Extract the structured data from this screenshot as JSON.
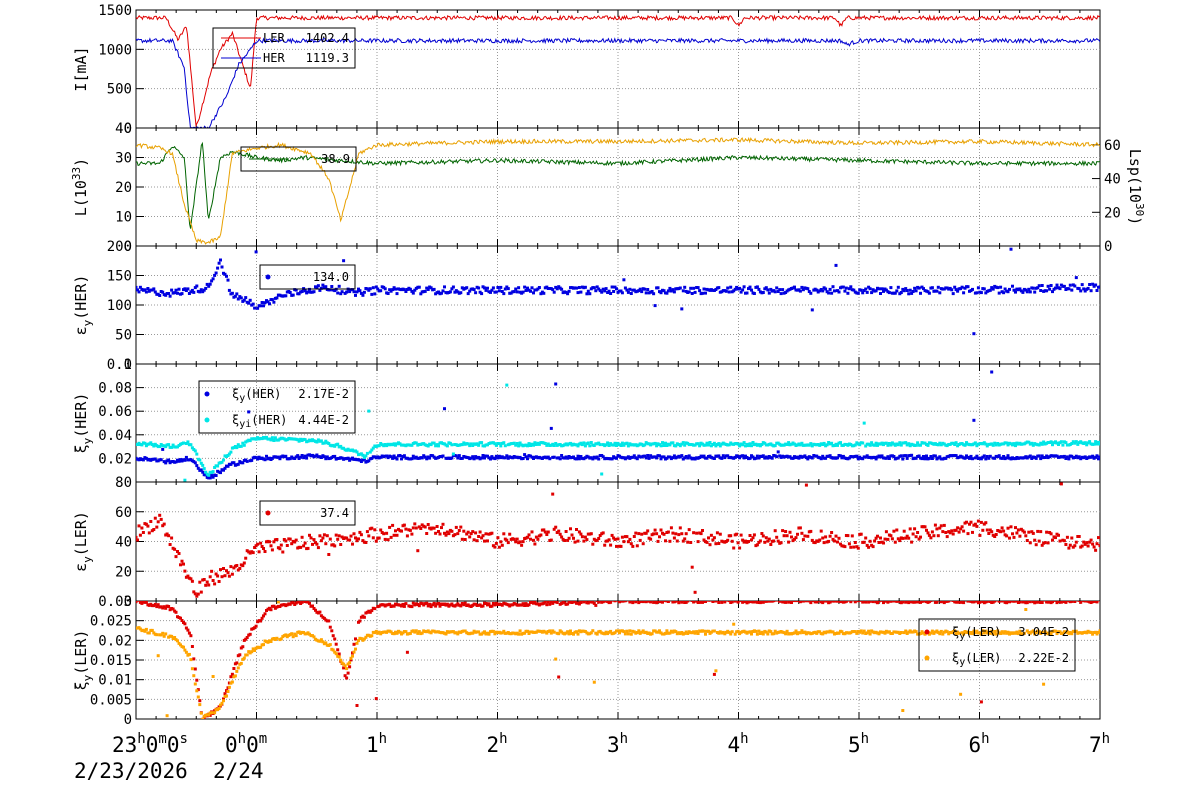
{
  "chart_data": [
    {
      "type": "line",
      "ylabel": "I[mA]",
      "ylim": [
        0,
        1500
      ],
      "yticks": [
        "0",
        "500",
        "1000",
        "1500"
      ],
      "grid": true,
      "series": [
        {
          "name": "LER",
          "color": "#e00000",
          "legend_value": "1402.4",
          "x": [
            0,
            0.25,
            0.35,
            0.42,
            0.5,
            0.62,
            0.7,
            0.8,
            0.95,
            1.0,
            2.0,
            4.0,
            4.95,
            5.0,
            5.05,
            5.8,
            5.85,
            5.9,
            8.0
          ],
          "y": [
            1400,
            1400,
            1120,
            1300,
            0,
            700,
            1000,
            1200,
            500,
            1400,
            1400,
            1400,
            1400,
            1300,
            1400,
            1400,
            1300,
            1400,
            1400
          ]
        },
        {
          "name": "HER",
          "color": "#0000d0",
          "legend_value": "1119.3",
          "x": [
            0,
            0.3,
            0.4,
            0.45,
            0.6,
            0.75,
            0.85,
            0.95,
            1.0,
            2.0,
            5.0,
            5.85,
            5.9,
            6.0,
            8.0
          ],
          "y": [
            1110,
            1110,
            770,
            0,
            0,
            400,
            800,
            1000,
            1110,
            1110,
            1110,
            1110,
            1060,
            1110,
            1110
          ]
        }
      ]
    },
    {
      "type": "line",
      "ylabel": "L(10",
      "ylabel_sup": "33",
      "ylabel_tail": ")",
      "ylim": [
        0,
        40
      ],
      "yticks": [
        "0",
        "10",
        "20",
        "30",
        "40"
      ],
      "y2label": "Lsp(10",
      "y2label_sup": "30",
      "y2label_tail": ")",
      "y2lim": [
        0,
        70
      ],
      "y2ticks": [
        "0",
        "20",
        "40",
        "60"
      ],
      "grid": true,
      "series": [
        {
          "name": "",
          "color": "#006400",
          "legend_value": "38.9",
          "x": [
            0,
            0.2,
            0.3,
            0.4,
            0.45,
            0.55,
            0.6,
            0.7,
            0.8,
            1.0,
            1.2,
            1.4,
            1.7,
            2.0,
            3.0,
            4.0,
            5.0,
            6.0,
            7.0,
            8.0
          ],
          "y": [
            28,
            28,
            34,
            30,
            5,
            36,
            8,
            30,
            32,
            30,
            29,
            30,
            29,
            28,
            29,
            28,
            30,
            29,
            28,
            28
          ]
        },
        {
          "name": "",
          "color": "#e8a000",
          "y_axis": "right",
          "x": [
            0,
            0.2,
            0.3,
            0.4,
            0.5,
            0.6,
            0.7,
            0.8,
            1.0,
            1.2,
            1.45,
            1.6,
            1.7,
            1.85,
            2.0,
            3.0,
            4.0,
            5.0,
            6.0,
            7.0,
            8.0
          ],
          "y": [
            60,
            58,
            55,
            25,
            3,
            2,
            5,
            55,
            58,
            60,
            55,
            40,
            15,
            55,
            60,
            62,
            62,
            63,
            61,
            62,
            60
          ]
        }
      ]
    },
    {
      "type": "scatter",
      "ylabel": "ε",
      "ylabel_sub": "y",
      "ylabel_tail": "(HER)",
      "ylim": [
        0,
        200
      ],
      "yticks": [
        "0",
        "50",
        "100",
        "150",
        "200"
      ],
      "grid": true,
      "series": [
        {
          "name": "",
          "color": "#0000e0",
          "legend_value": "134.0",
          "x": [
            0,
            0.3,
            0.6,
            0.7,
            0.8,
            0.9,
            1.0,
            1.2,
            1.4,
            1.6,
            1.8,
            2.0,
            3.0,
            4.0,
            5.0,
            6.0,
            7.0,
            8.0
          ],
          "y": [
            125,
            120,
            130,
            175,
            115,
            110,
            95,
            115,
            125,
            130,
            120,
            125,
            125,
            125,
            125,
            125,
            125,
            130
          ]
        }
      ]
    },
    {
      "type": "scatter",
      "ylabel": "ξ",
      "ylabel_sub": "y",
      "ylabel_tail": "(HER)",
      "ylim": [
        0,
        0.1
      ],
      "yticks": [
        "0.02",
        "0.04",
        "0.06",
        "0.08",
        "0.1"
      ],
      "grid": true,
      "series": [
        {
          "name": "ξy(HER)",
          "legend_main": "ξ",
          "legend_sub": "y",
          "legend_tail": "(HER)",
          "color": "#0000e0",
          "legend_value": "2.17E-2",
          "x": [
            0,
            0.3,
            0.45,
            0.6,
            0.8,
            1.0,
            1.5,
            1.7,
            1.9,
            2.0,
            3.0,
            4.0,
            5.0,
            6.0,
            7.0,
            8.0
          ],
          "y": [
            0.02,
            0.017,
            0.02,
            0.003,
            0.015,
            0.02,
            0.022,
            0.02,
            0.018,
            0.021,
            0.021,
            0.021,
            0.021,
            0.021,
            0.021,
            0.021
          ]
        },
        {
          "name": "ξyi(HER)",
          "legend_main": "ξ",
          "legend_sub": "yi",
          "legend_tail": "(HER)",
          "color": "#00e6e6",
          "legend_value": "4.44E-2",
          "x": [
            0,
            0.3,
            0.45,
            0.6,
            0.8,
            1.0,
            1.5,
            1.7,
            1.9,
            2.0,
            3.0,
            4.0,
            5.0,
            6.0,
            7.0,
            8.0
          ],
          "y": [
            0.033,
            0.03,
            0.033,
            0.005,
            0.028,
            0.037,
            0.035,
            0.03,
            0.022,
            0.032,
            0.032,
            0.032,
            0.032,
            0.032,
            0.032,
            0.033
          ]
        }
      ]
    },
    {
      "type": "scatter",
      "ylabel": "ε",
      "ylabel_sub": "y",
      "ylabel_tail": "(LER)",
      "ylim": [
        0,
        80
      ],
      "yticks": [
        "0",
        "20",
        "40",
        "60",
        "80"
      ],
      "grid": true,
      "series": [
        {
          "name": "",
          "color": "#e00000",
          "legend_value": "37.4",
          "x": [
            0,
            0.2,
            0.35,
            0.5,
            0.6,
            0.8,
            1.0,
            1.5,
            2.0,
            2.5,
            3.0,
            3.5,
            4.0,
            4.5,
            5.0,
            5.5,
            6.0,
            6.5,
            7.0,
            7.5,
            8.0
          ],
          "y": [
            45,
            55,
            30,
            5,
            15,
            20,
            35,
            40,
            45,
            50,
            40,
            45,
            40,
            45,
            40,
            45,
            40,
            45,
            50,
            42,
            38
          ]
        }
      ]
    },
    {
      "type": "scatter",
      "ylabel": "ξ",
      "ylabel_sub": "y",
      "ylabel_tail": "(LER)",
      "ylim": [
        0,
        0.03
      ],
      "yticks": [
        "0",
        "0.005",
        "0.01",
        "0.015",
        "0.02",
        "0.025",
        "0.03"
      ],
      "grid": true,
      "series": [
        {
          "name": "ξy(LER)",
          "legend_main": "ξ",
          "legend_sub": "y",
          "legend_tail": "(LER)",
          "color": "#e00000",
          "legend_value": "3.04E-2",
          "x": [
            0,
            0.3,
            0.45,
            0.55,
            0.7,
            0.9,
            1.1,
            1.4,
            1.6,
            1.75,
            1.85,
            2.0,
            3.0,
            4.0,
            5.0,
            6.0,
            7.0,
            8.0
          ],
          "y": [
            0.03,
            0.028,
            0.022,
            0.0,
            0.003,
            0.02,
            0.028,
            0.03,
            0.025,
            0.01,
            0.025,
            0.029,
            0.029,
            0.03,
            0.03,
            0.03,
            0.03,
            0.03
          ]
        },
        {
          "name": "ξy(LER)",
          "legend_main": "ξ",
          "legend_sub": "y",
          "legend_tail": "(LER)",
          "color": "#ffa500",
          "legend_value": "2.22E-2",
          "x": [
            0,
            0.3,
            0.45,
            0.55,
            0.7,
            0.9,
            1.1,
            1.4,
            1.6,
            1.75,
            1.85,
            2.0,
            3.0,
            4.0,
            5.0,
            6.0,
            7.0,
            8.0
          ],
          "y": [
            0.023,
            0.021,
            0.016,
            0.0,
            0.003,
            0.016,
            0.02,
            0.022,
            0.019,
            0.013,
            0.02,
            0.022,
            0.022,
            0.022,
            0.022,
            0.022,
            0.022,
            0.022
          ]
        }
      ]
    }
  ],
  "x_axis": {
    "xlim": [
      0,
      8
    ],
    "ticks": [
      {
        "x": 0,
        "main": "23",
        "sup": "h",
        "tail": "0",
        "sup2": "m",
        "tail2": "0",
        "sup3": "s"
      },
      {
        "x": 1,
        "main": "0",
        "sup": "h",
        "tail": "0",
        "sup2": "m",
        "tail2": "",
        "sup3": ""
      },
      {
        "x": 2,
        "main": "1",
        "sup": "h"
      },
      {
        "x": 3,
        "main": "2",
        "sup": "h"
      },
      {
        "x": 4,
        "main": "3",
        "sup": "h"
      },
      {
        "x": 5,
        "main": "4",
        "sup": "h"
      },
      {
        "x": 6,
        "main": "5",
        "sup": "h"
      },
      {
        "x": 7,
        "main": "6",
        "sup": "h"
      },
      {
        "x": 8,
        "main": "7",
        "sup": "h"
      }
    ],
    "date_left": "2/23/2026",
    "date_right": "2/24"
  }
}
